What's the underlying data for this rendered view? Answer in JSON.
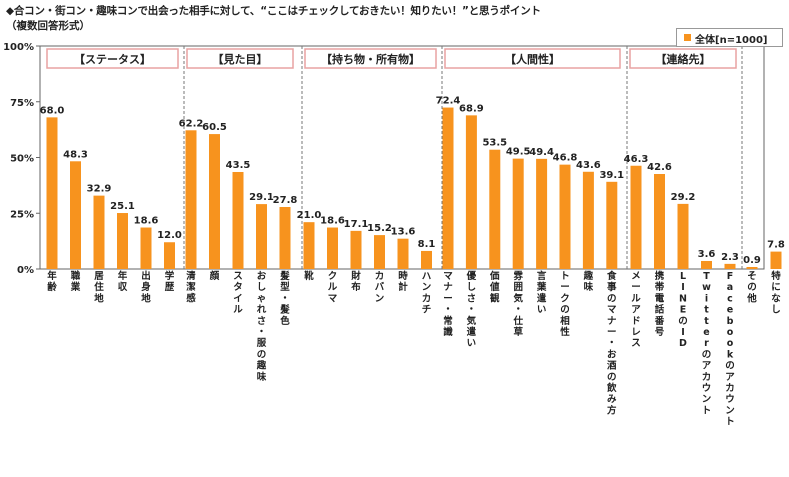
{
  "header": {
    "title": "◆合コン・街コン・趣味コンで出会った相手に対して、“ここはチェックしておきたい！知りたい！”と思うポイント",
    "subtitle": "（複数回答形式）"
  },
  "legend": {
    "label": "全体[n=1000]"
  },
  "colors": {
    "bar": "#F7931E",
    "group_border": "#E8A2A2"
  },
  "chart_data": {
    "type": "bar",
    "title": "◆合コン・街コン・趣味コンで出会った相手に対して、“ここはチェックしておきたい！知りたい！”と思うポイント",
    "subtitle": "（複数回答形式）",
    "ylim": [
      0,
      100
    ],
    "yticks": [
      "0%",
      "25%",
      "50%",
      "75%",
      "100%"
    ],
    "grid": false,
    "legend_position": "top-right",
    "series": [
      {
        "name": "全体[n=1000]"
      }
    ],
    "groups": [
      {
        "name": "【ステータス】",
        "categories": [
          "年齢",
          "職業",
          "居住地",
          "年収",
          "出身地",
          "学歴"
        ],
        "values": [
          68.0,
          48.3,
          32.9,
          25.1,
          18.6,
          12.0
        ]
      },
      {
        "name": "【見た目】",
        "categories": [
          "清潔感",
          "顔",
          "スタイル",
          "おしゃれさ・服の趣味",
          "髪型・髪色"
        ],
        "values": [
          62.2,
          60.5,
          43.5,
          29.1,
          27.8
        ]
      },
      {
        "name": "【持ち物・所有物】",
        "categories": [
          "靴",
          "クルマ",
          "財布",
          "カバン",
          "時計",
          "ハンカチ"
        ],
        "values": [
          21.0,
          18.6,
          17.1,
          15.2,
          13.6,
          8.1
        ]
      },
      {
        "name": "【人間性】",
        "categories": [
          "マナー・常識",
          "優しさ・気遣い",
          "価値観",
          "雰囲気・仕草",
          "言葉遣い",
          "トークの相性",
          "趣味",
          "食事のマナー・お酒の飲み方"
        ],
        "values": [
          72.4,
          68.9,
          53.5,
          49.5,
          49.4,
          46.8,
          43.6,
          39.1
        ]
      },
      {
        "name": "【連絡先】",
        "categories": [
          "メールアドレス",
          "携帯電話番号",
          "LINEのID",
          "Twitterのアカウント",
          "Facebookのアカウント"
        ],
        "values": [
          46.3,
          42.6,
          29.2,
          3.6,
          2.3
        ]
      },
      {
        "name": "",
        "categories": [
          "その他"
        ],
        "values": [
          0.9
        ]
      },
      {
        "name": "",
        "categories": [
          "特になし"
        ],
        "values": [
          7.8
        ]
      }
    ]
  }
}
